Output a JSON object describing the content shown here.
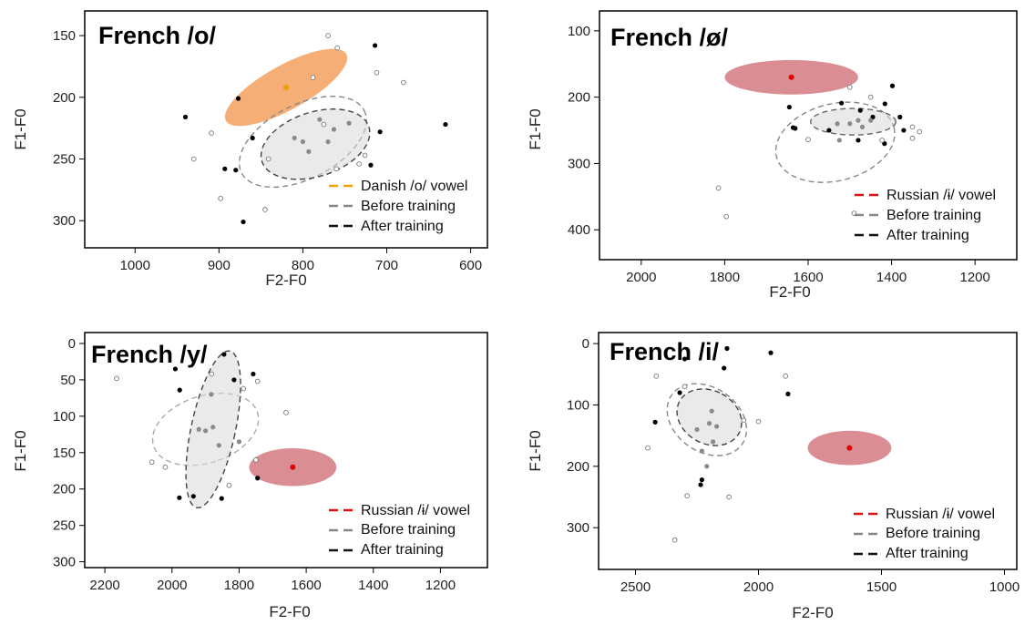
{
  "chart_data": [
    {
      "type": "scatter",
      "title": "French /o/",
      "xlabel": "F2-F0",
      "ylabel": "F1-F0",
      "xlim": [
        1060,
        580
      ],
      "ylim": [
        322,
        130
      ],
      "xticks": [
        1000,
        900,
        800,
        700,
        600
      ],
      "yticks": [
        150,
        200,
        250,
        300
      ],
      "reference": {
        "name": "Danish /o/ vowel",
        "color": "#f5a05f",
        "dot_color": "#f0a000",
        "center": [
          820,
          192
        ],
        "rx": 82,
        "ry": 18,
        "angle": -29
      },
      "legend": [
        "Danish /o/ vowel",
        "Before training",
        "After training"
      ],
      "legend_colors": [
        "#f0a000",
        "#888888",
        "#111111"
      ],
      "ellipses": [
        {
          "name": "Before training",
          "center": [
            800,
            236
          ],
          "rx": 82,
          "ry": 30,
          "angle": -27,
          "color": "#888888",
          "fill": false
        },
        {
          "name": "After training",
          "center": [
            785,
            238
          ],
          "rx": 67,
          "ry": 26,
          "angle": -18,
          "color": "#444444",
          "fill": true
        }
      ],
      "points": [
        [
          940,
          216,
          "f"
        ],
        [
          877,
          201,
          "f"
        ],
        [
          860,
          233,
          "f"
        ],
        [
          893,
          258,
          "f"
        ],
        [
          880,
          259,
          "f"
        ],
        [
          871,
          301,
          "f"
        ],
        [
          714,
          158,
          "f"
        ],
        [
          708,
          228,
          "f"
        ],
        [
          719,
          255,
          "f"
        ],
        [
          630,
          222,
          "f"
        ],
        [
          930,
          250,
          "o"
        ],
        [
          909,
          229,
          "o"
        ],
        [
          898,
          282,
          "o"
        ],
        [
          845,
          291,
          "o"
        ],
        [
          841,
          250,
          "o"
        ],
        [
          770,
          150,
          "o"
        ],
        [
          759,
          160,
          "o"
        ],
        [
          712,
          180,
          "o"
        ],
        [
          680,
          188,
          "o"
        ],
        [
          788,
          184,
          "o"
        ],
        [
          733,
          254,
          "o"
        ],
        [
          775,
          222,
          "o"
        ],
        [
          760,
          258,
          "o"
        ],
        [
          726,
          247,
          "o"
        ],
        [
          810,
          233,
          "g"
        ],
        [
          793,
          244,
          "g"
        ],
        [
          780,
          218,
          "g"
        ],
        [
          763,
          226,
          "g"
        ],
        [
          745,
          221,
          "g"
        ],
        [
          800,
          236,
          "g"
        ],
        [
          770,
          236,
          "g"
        ]
      ]
    },
    {
      "type": "scatter",
      "title": "French /ø/",
      "xlabel": "F2-F0",
      "ylabel": "F1-F0",
      "xlim": [
        2100,
        1100
      ],
      "ylim": [
        445,
        70
      ],
      "xticks": [
        2000,
        1800,
        1600,
        1400,
        1200
      ],
      "yticks": [
        100,
        200,
        300,
        400
      ],
      "reference": {
        "name": "Russian /ɨ/ vowel",
        "color": "#d47a80",
        "dot_color": "#e00000",
        "center": [
          1640,
          170
        ],
        "rx": 160,
        "ry": 26,
        "angle": 0
      },
      "legend": [
        "Russian /ɨ/ vowel",
        "Before training",
        "After training"
      ],
      "legend_colors": [
        "#e01010",
        "#888888",
        "#111111"
      ],
      "ellipses": [
        {
          "name": "Before training",
          "center": [
            1535,
            268
          ],
          "rx": 145,
          "ry": 58,
          "angle": -14,
          "color": "#888888",
          "fill": false
        },
        {
          "name": "After training",
          "center": [
            1492,
            237
          ],
          "rx": 102,
          "ry": 20,
          "angle": 0,
          "color": "#666666",
          "fill": true
        }
      ],
      "points": [
        [
          1645,
          215,
          "f"
        ],
        [
          1636,
          246,
          "f"
        ],
        [
          1631,
          247,
          "f"
        ],
        [
          1520,
          209,
          "f"
        ],
        [
          1475,
          220,
          "f"
        ],
        [
          1445,
          230,
          "f"
        ],
        [
          1416,
          210,
          "f"
        ],
        [
          1398,
          183,
          "f"
        ],
        [
          1380,
          230,
          "f"
        ],
        [
          1371,
          250,
          "f"
        ],
        [
          1550,
          250,
          "f"
        ],
        [
          1480,
          265,
          "f"
        ],
        [
          1417,
          270,
          "f"
        ],
        [
          1815,
          337,
          "o"
        ],
        [
          1796,
          380,
          "o"
        ],
        [
          1600,
          264,
          "o"
        ],
        [
          1490,
          375,
          "o"
        ],
        [
          1423,
          265,
          "o"
        ],
        [
          1350,
          245,
          "o"
        ],
        [
          1333,
          252,
          "o"
        ],
        [
          1350,
          262,
          "o"
        ],
        [
          1450,
          200,
          "o"
        ],
        [
          1500,
          185,
          "o"
        ],
        [
          1525,
          265,
          "g"
        ],
        [
          1500,
          240,
          "g"
        ],
        [
          1480,
          235,
          "g"
        ],
        [
          1530,
          240,
          "g"
        ],
        [
          1470,
          245,
          "g"
        ],
        [
          1450,
          235,
          "g"
        ]
      ]
    },
    {
      "type": "scatter",
      "title": "French /y/",
      "xlabel": "F2-F0",
      "ylabel": "F1-F0",
      "xlim": [
        2260,
        1060
      ],
      "ylim": [
        308,
        -15
      ],
      "xticks": [
        2200,
        2000,
        1800,
        1600,
        1400,
        1200
      ],
      "yticks": [
        0,
        50,
        100,
        150,
        200,
        250,
        300
      ],
      "reference": {
        "name": "Russian /ɨ/ vowel",
        "color": "#d47a80",
        "dot_color": "#e00000",
        "center": [
          1640,
          170
        ],
        "rx": 130,
        "ry": 26,
        "angle": 0
      },
      "legend": [
        "Russian /ɨ/ vowel",
        "Before training",
        "After training"
      ],
      "legend_colors": [
        "#e01010",
        "#888888",
        "#111111"
      ],
      "ellipses": [
        {
          "name": "Before training",
          "center": [
            1900,
            118
          ],
          "rx": 100,
          "ry": 75,
          "angle": 72,
          "color": "#aaaaaa",
          "fill": false
        },
        {
          "name": "After training",
          "center": [
            1877,
            118
          ],
          "rx": 66,
          "ry": 110,
          "angle": 12,
          "color": "#444444",
          "fill": true
        }
      ],
      "points": [
        [
          1990,
          35,
          "f"
        ],
        [
          1977,
          64,
          "f"
        ],
        [
          1978,
          212,
          "f"
        ],
        [
          1936,
          210,
          "f"
        ],
        [
          1852,
          213,
          "f"
        ],
        [
          1845,
          15,
          "f"
        ],
        [
          1815,
          50,
          "f"
        ],
        [
          1758,
          42,
          "f"
        ],
        [
          1745,
          185,
          "f"
        ],
        [
          2165,
          48,
          "o"
        ],
        [
          2060,
          163,
          "o"
        ],
        [
          2020,
          170,
          "o"
        ],
        [
          1882,
          42,
          "o"
        ],
        [
          1787,
          62,
          "o"
        ],
        [
          1745,
          52,
          "o"
        ],
        [
          1660,
          95,
          "o"
        ],
        [
          1830,
          195,
          "o"
        ],
        [
          1750,
          160,
          "o"
        ],
        [
          1900,
          120,
          "g"
        ],
        [
          1920,
          118,
          "g"
        ],
        [
          1883,
          70,
          "g"
        ],
        [
          1878,
          115,
          "g"
        ],
        [
          1860,
          140,
          "g"
        ],
        [
          1800,
          135,
          "g"
        ]
      ]
    },
    {
      "type": "scatter",
      "title": "French /i/",
      "xlabel": "F2-F0",
      "ylabel": "F1-F0",
      "xlim": [
        2650,
        950
      ],
      "ylim": [
        368,
        -18
      ],
      "xticks": [
        2500,
        2000,
        1500,
        1000
      ],
      "yticks": [
        0,
        100,
        200,
        300
      ],
      "reference": {
        "name": "Russian /ɨ/ vowel",
        "color": "#d47a80",
        "dot_color": "#e00000",
        "center": [
          1630,
          170
        ],
        "rx": 170,
        "ry": 28,
        "angle": 0
      },
      "legend": [
        "Russian /ɨ/ vowel",
        "Before training",
        "After training"
      ],
      "legend_colors": [
        "#e01010",
        "#888888",
        "#111111"
      ],
      "ellipses": [
        {
          "name": "Before training",
          "center": [
            2210,
            124
          ],
          "rx": 130,
          "ry": 70,
          "angle": -55,
          "color": "#888888",
          "fill": false
        },
        {
          "name": "After training",
          "center": [
            2200,
            120
          ],
          "rx": 108,
          "ry": 55,
          "angle": -62,
          "color": "#444444",
          "fill": true
        }
      ],
      "points": [
        [
          2300,
          25,
          "f"
        ],
        [
          2320,
          80,
          "f"
        ],
        [
          2128,
          8,
          "f"
        ],
        [
          1950,
          15,
          "f"
        ],
        [
          2420,
          128,
          "f"
        ],
        [
          1880,
          82,
          "f"
        ],
        [
          2140,
          40,
          "f"
        ],
        [
          2230,
          222,
          "f"
        ],
        [
          2235,
          230,
          "f"
        ],
        [
          2415,
          53,
          "o"
        ],
        [
          2450,
          170,
          "o"
        ],
        [
          2290,
          248,
          "o"
        ],
        [
          2340,
          320,
          "o"
        ],
        [
          2120,
          250,
          "o"
        ],
        [
          1890,
          53,
          "o"
        ],
        [
          2000,
          127,
          "o"
        ],
        [
          2060,
          125,
          "o"
        ],
        [
          2300,
          70,
          "o"
        ],
        [
          2200,
          130,
          "g"
        ],
        [
          2185,
          160,
          "g"
        ],
        [
          2230,
          175,
          "g"
        ],
        [
          2210,
          200,
          "g"
        ],
        [
          2190,
          110,
          "g"
        ],
        [
          2250,
          140,
          "g"
        ],
        [
          2170,
          135,
          "g"
        ]
      ]
    }
  ]
}
